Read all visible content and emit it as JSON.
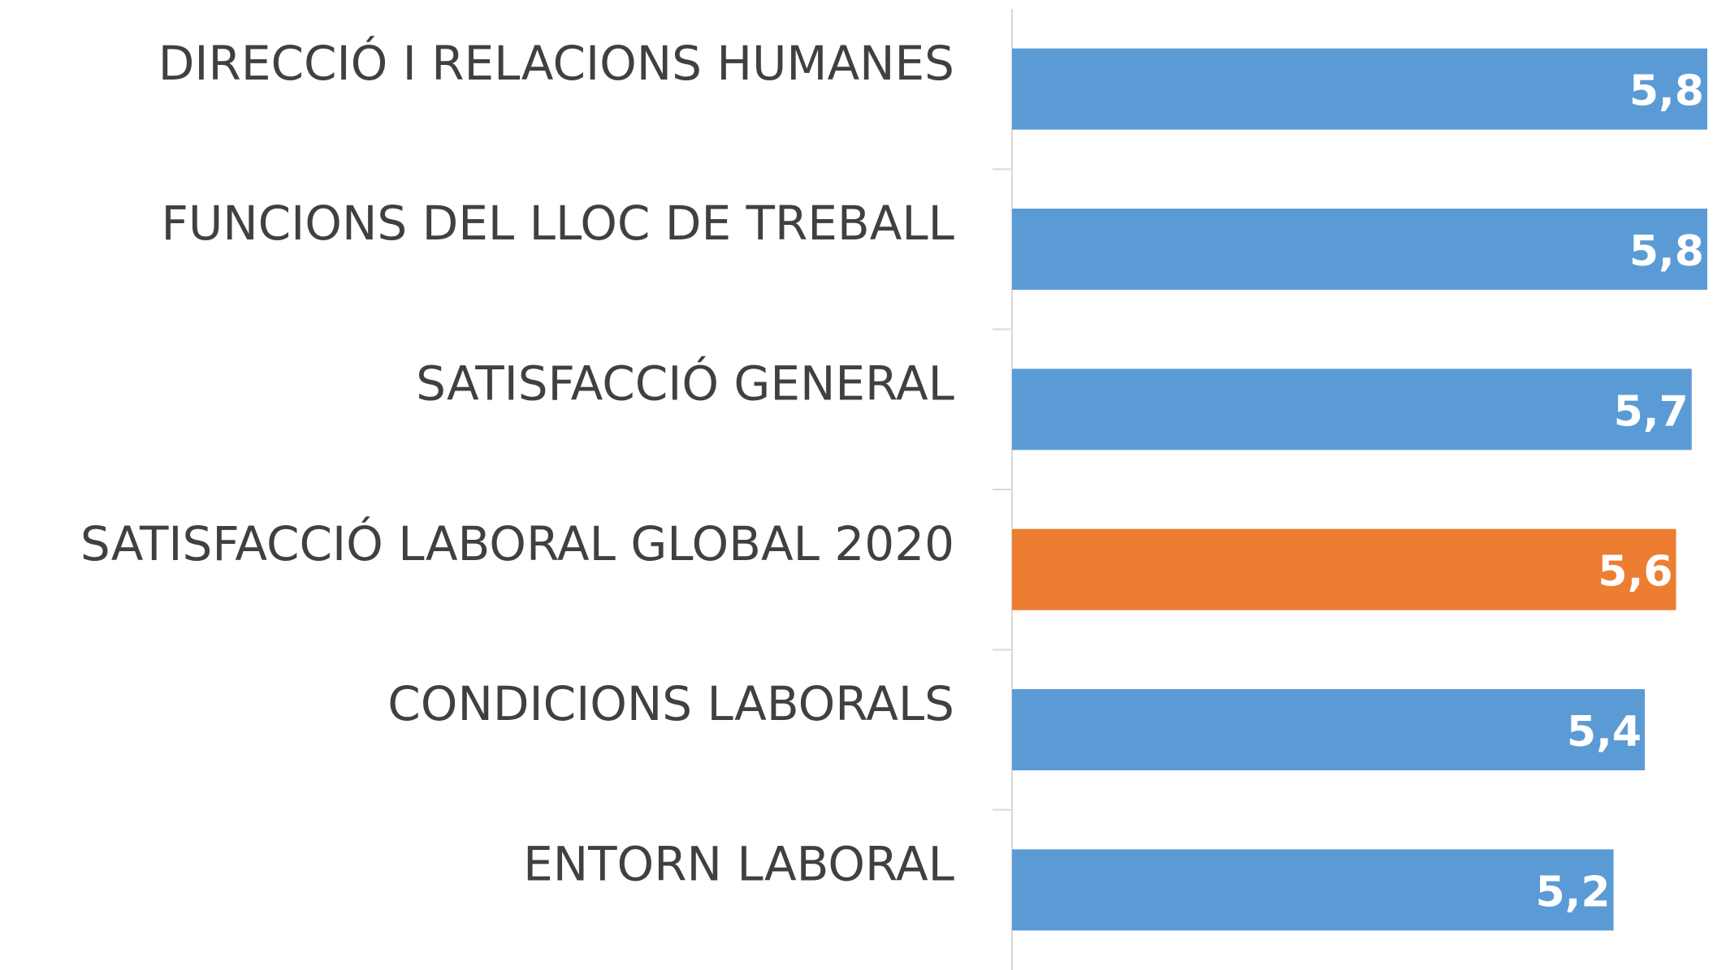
{
  "chart_data": {
    "type": "barh",
    "categories": [
      "DIRECCIÓ I RELACIONS HUMANES",
      "FUNCIONS DEL LLOC DE TREBALL",
      "SATISFACCIÓ GENERAL",
      "SATISFACCIÓ LABORAL GLOBAL 2020",
      "CONDICIONS LABORALS",
      "ENTORN LABORAL"
    ],
    "values": [
      5.8,
      5.8,
      5.7,
      5.6,
      5.4,
      5.2
    ],
    "value_labels": [
      "5,8",
      "5,8",
      "5,7",
      "5,6",
      "5,4",
      "5,2"
    ],
    "colors": [
      "#5b9bd5",
      "#5b9bd5",
      "#5b9bd5",
      "#ed7d31",
      "#5b9bd5",
      "#5b9bd5"
    ],
    "xlim": [
      1.35,
      5.8
    ]
  }
}
